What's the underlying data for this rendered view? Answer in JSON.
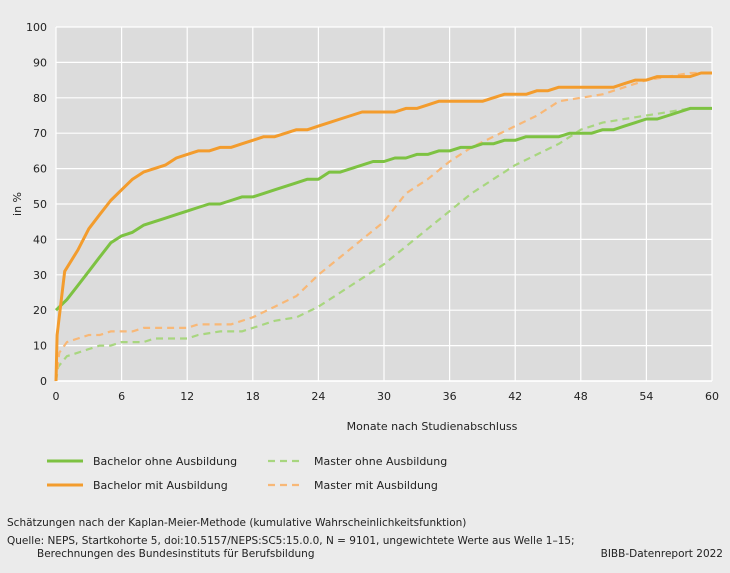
{
  "chart_data": {
    "type": "line",
    "ylabel": "in %",
    "xlabel": "Monate nach Studienabschluss",
    "xlim": [
      0,
      60
    ],
    "ylim": [
      0,
      100
    ],
    "x_ticks": [
      0,
      6,
      12,
      18,
      24,
      30,
      36,
      42,
      48,
      54,
      60
    ],
    "y_ticks": [
      0,
      10,
      20,
      30,
      40,
      50,
      60,
      70,
      80,
      90,
      100
    ],
    "grid": true,
    "legend_position": "bottom",
    "series": [
      {
        "name": "Bachelor ohne Ausbildung",
        "color": "#7dc242",
        "dashed": false,
        "points": [
          [
            0,
            20
          ],
          [
            1,
            23
          ],
          [
            2,
            27
          ],
          [
            3,
            31
          ],
          [
            4,
            35
          ],
          [
            5,
            39
          ],
          [
            6,
            41
          ],
          [
            7,
            42
          ],
          [
            8,
            44
          ],
          [
            9,
            45
          ],
          [
            10,
            46
          ],
          [
            11,
            47
          ],
          [
            12,
            48
          ],
          [
            13,
            49
          ],
          [
            14,
            50
          ],
          [
            15,
            50
          ],
          [
            16,
            51
          ],
          [
            17,
            52
          ],
          [
            18,
            52
          ],
          [
            19,
            53
          ],
          [
            20,
            54
          ],
          [
            21,
            55
          ],
          [
            22,
            56
          ],
          [
            23,
            57
          ],
          [
            24,
            57
          ],
          [
            25,
            59
          ],
          [
            26,
            59
          ],
          [
            27,
            60
          ],
          [
            28,
            61
          ],
          [
            29,
            62
          ],
          [
            30,
            62
          ],
          [
            31,
            63
          ],
          [
            32,
            63
          ],
          [
            33,
            64
          ],
          [
            34,
            64
          ],
          [
            35,
            65
          ],
          [
            36,
            65
          ],
          [
            37,
            66
          ],
          [
            38,
            66
          ],
          [
            39,
            67
          ],
          [
            40,
            67
          ],
          [
            41,
            68
          ],
          [
            42,
            68
          ],
          [
            43,
            69
          ],
          [
            44,
            69
          ],
          [
            45,
            69
          ],
          [
            46,
            69
          ],
          [
            47,
            70
          ],
          [
            48,
            70
          ],
          [
            49,
            70
          ],
          [
            50,
            71
          ],
          [
            51,
            71
          ],
          [
            52,
            72
          ],
          [
            53,
            73
          ],
          [
            54,
            74
          ],
          [
            55,
            74
          ],
          [
            56,
            75
          ],
          [
            57,
            76
          ],
          [
            58,
            77
          ],
          [
            59,
            77
          ],
          [
            60,
            77
          ]
        ]
      },
      {
        "name": "Bachelor mit Ausbildung",
        "color": "#f39c2d",
        "dashed": false,
        "points": [
          [
            0,
            0
          ],
          [
            0.1,
            13
          ],
          [
            0.8,
            31
          ],
          [
            2,
            37
          ],
          [
            3,
            43
          ],
          [
            4,
            47
          ],
          [
            5,
            51
          ],
          [
            6,
            54
          ],
          [
            7,
            57
          ],
          [
            8,
            59
          ],
          [
            9,
            60
          ],
          [
            10,
            61
          ],
          [
            11,
            63
          ],
          [
            12,
            64
          ],
          [
            13,
            65
          ],
          [
            14,
            65
          ],
          [
            15,
            66
          ],
          [
            16,
            66
          ],
          [
            17,
            67
          ],
          [
            18,
            68
          ],
          [
            19,
            69
          ],
          [
            20,
            69
          ],
          [
            21,
            70
          ],
          [
            22,
            71
          ],
          [
            23,
            71
          ],
          [
            24,
            72
          ],
          [
            25,
            73
          ],
          [
            26,
            74
          ],
          [
            27,
            75
          ],
          [
            28,
            76
          ],
          [
            29,
            76
          ],
          [
            30,
            76
          ],
          [
            31,
            76
          ],
          [
            32,
            77
          ],
          [
            33,
            77
          ],
          [
            34,
            78
          ],
          [
            35,
            79
          ],
          [
            36,
            79
          ],
          [
            37,
            79
          ],
          [
            38,
            79
          ],
          [
            39,
            79
          ],
          [
            40,
            80
          ],
          [
            41,
            81
          ],
          [
            42,
            81
          ],
          [
            43,
            81
          ],
          [
            44,
            82
          ],
          [
            45,
            82
          ],
          [
            46,
            83
          ],
          [
            47,
            83
          ],
          [
            48,
            83
          ],
          [
            49,
            83
          ],
          [
            50,
            83
          ],
          [
            51,
            83
          ],
          [
            52,
            84
          ],
          [
            53,
            85
          ],
          [
            54,
            85
          ],
          [
            55,
            86
          ],
          [
            56,
            86
          ],
          [
            57,
            86
          ],
          [
            58,
            86
          ],
          [
            59,
            87
          ],
          [
            60,
            87
          ]
        ]
      },
      {
        "name": "Master ohne Ausbildung",
        "color": "#a8d67f",
        "dashed": true,
        "points": [
          [
            0,
            0
          ],
          [
            0.2,
            4
          ],
          [
            1,
            7
          ],
          [
            2,
            8
          ],
          [
            3,
            9
          ],
          [
            4,
            10
          ],
          [
            5,
            10
          ],
          [
            6,
            11
          ],
          [
            8,
            11
          ],
          [
            9,
            12
          ],
          [
            12,
            12
          ],
          [
            13,
            13
          ],
          [
            15,
            14
          ],
          [
            17,
            14
          ],
          [
            18,
            15
          ],
          [
            20,
            17
          ],
          [
            22,
            18
          ],
          [
            24,
            21
          ],
          [
            26,
            25
          ],
          [
            28,
            29
          ],
          [
            30,
            33
          ],
          [
            32,
            38
          ],
          [
            34,
            43
          ],
          [
            36,
            48
          ],
          [
            38,
            53
          ],
          [
            40,
            57
          ],
          [
            42,
            61
          ],
          [
            44,
            64
          ],
          [
            46,
            67
          ],
          [
            48,
            71
          ],
          [
            50,
            73
          ],
          [
            52,
            74
          ],
          [
            54,
            75
          ],
          [
            56,
            76
          ],
          [
            58,
            77
          ],
          [
            60,
            77
          ]
        ]
      },
      {
        "name": "Master mit Ausbildung",
        "color": "#f8b877",
        "dashed": true,
        "points": [
          [
            0,
            0
          ],
          [
            0.3,
            8
          ],
          [
            1,
            11
          ],
          [
            2,
            12
          ],
          [
            3,
            13
          ],
          [
            4,
            13
          ],
          [
            5,
            14
          ],
          [
            7,
            14
          ],
          [
            8,
            15
          ],
          [
            12,
            15
          ],
          [
            13,
            16
          ],
          [
            16,
            16
          ],
          [
            18,
            18
          ],
          [
            20,
            21
          ],
          [
            22,
            24
          ],
          [
            24,
            30
          ],
          [
            26,
            35
          ],
          [
            28,
            40
          ],
          [
            30,
            45
          ],
          [
            32,
            53
          ],
          [
            34,
            57
          ],
          [
            36,
            62
          ],
          [
            38,
            66
          ],
          [
            40,
            69
          ],
          [
            42,
            72
          ],
          [
            44,
            75
          ],
          [
            46,
            79
          ],
          [
            48,
            80
          ],
          [
            50,
            81
          ],
          [
            52,
            83
          ],
          [
            54,
            85
          ],
          [
            56,
            86
          ],
          [
            58,
            87
          ],
          [
            60,
            87
          ]
        ]
      }
    ]
  },
  "footer": {
    "method": "Schätzungen nach der Kaplan-Meier-Methode (kumulative Wahrscheinlichkeitsfunktion)",
    "source_line1": "Quelle: NEPS, Startkohorte 5, doi:10.5157/NEPS:SC5:15.0.0, N = 9101, ungewichtete Werte aus Welle 1–15;",
    "source_line2": "Berechnungen des Bundesinstituts für Berufsbildung",
    "credit": "BIBB-Datenreport 2022"
  }
}
